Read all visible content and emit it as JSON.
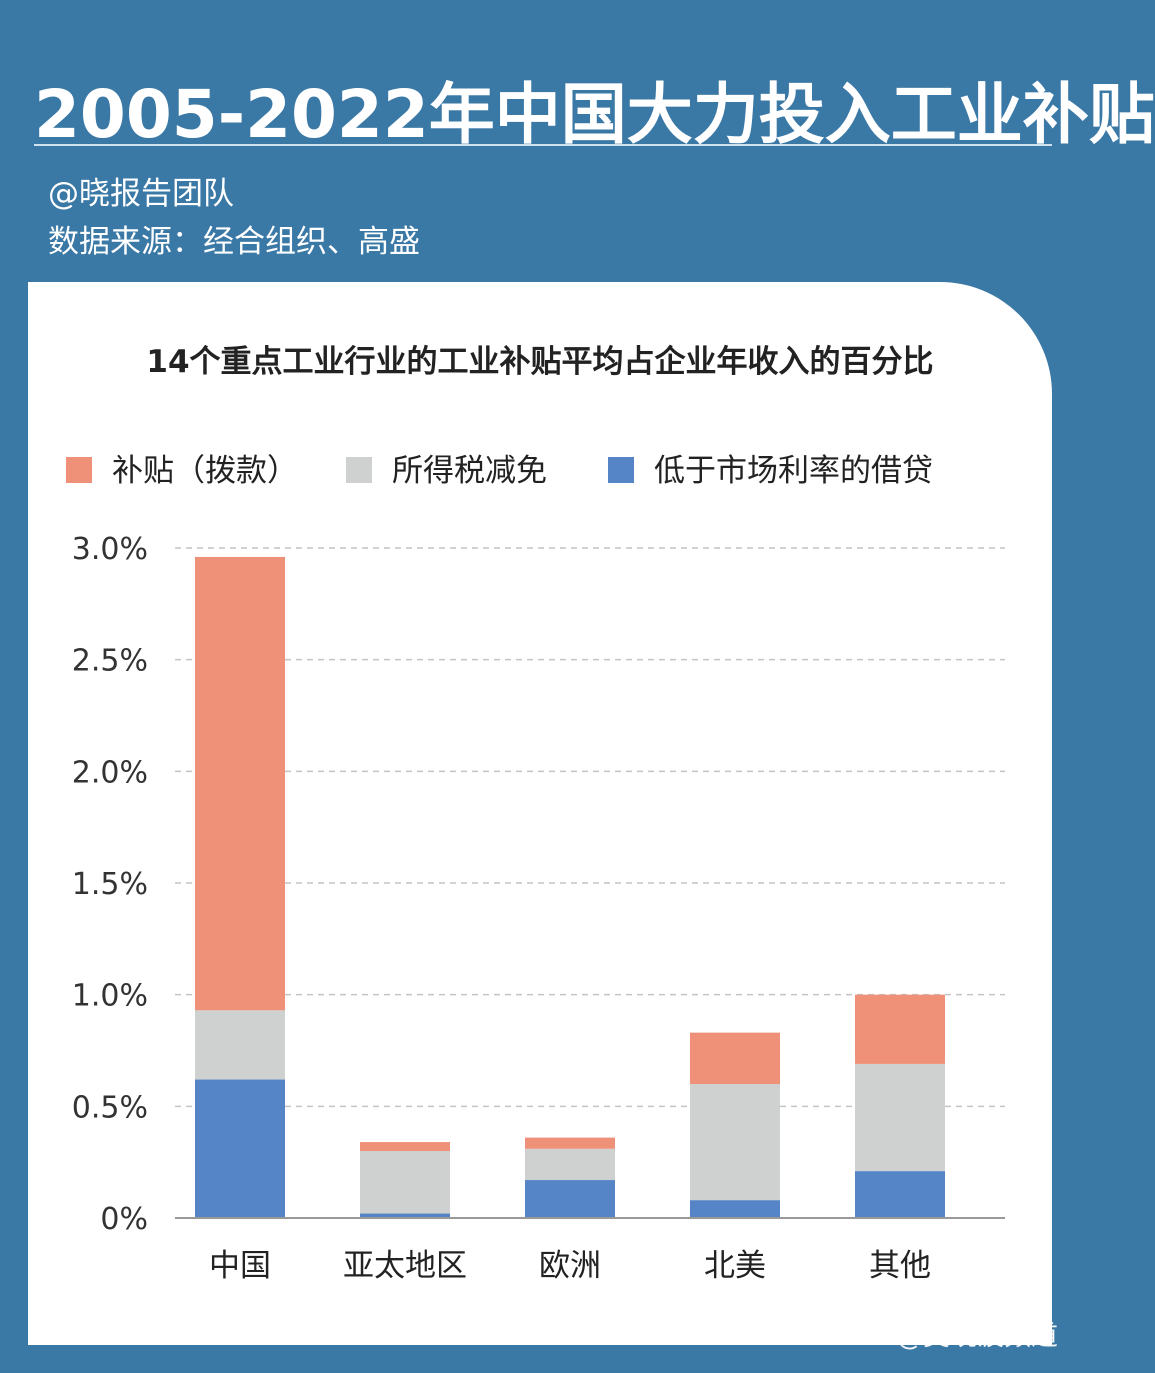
{
  "header": {
    "title": "2005-2022年中国大力投入工业补贴",
    "author": "@晓报告团队",
    "source": "数据来源：经合组织、高盛"
  },
  "watermark": "@吴晓波频道",
  "chart_data": {
    "type": "bar",
    "stacked": true,
    "title": "14个重点工业行业的工业补贴平均占企业年收入的百分比",
    "categories": [
      "中国",
      "亚太地区",
      "欧洲",
      "北美",
      "其他"
    ],
    "series": [
      {
        "name": "低于市场利率的借贷",
        "color": "#5585c6",
        "values": [
          0.62,
          0.02,
          0.17,
          0.08,
          0.21
        ]
      },
      {
        "name": "所得税减免",
        "color": "#cfd0d0",
        "values": [
          0.31,
          0.28,
          0.14,
          0.52,
          0.48
        ]
      },
      {
        "name": "补贴（拨款）",
        "color": "#ef9079",
        "values": [
          2.03,
          0.04,
          0.05,
          0.23,
          0.31
        ]
      }
    ],
    "legend_order": [
      2,
      1,
      0
    ],
    "yticks": [
      0,
      0.5,
      1.0,
      1.5,
      2.0,
      2.5,
      3.0
    ],
    "ytick_labels": [
      "0%",
      "0.5%",
      "1.0%",
      "1.5%",
      "2.0%",
      "2.5%",
      "3.0%"
    ],
    "ylim": [
      0,
      3.0
    ],
    "grid": "dashed horizontal",
    "legend_position": "top-left"
  }
}
